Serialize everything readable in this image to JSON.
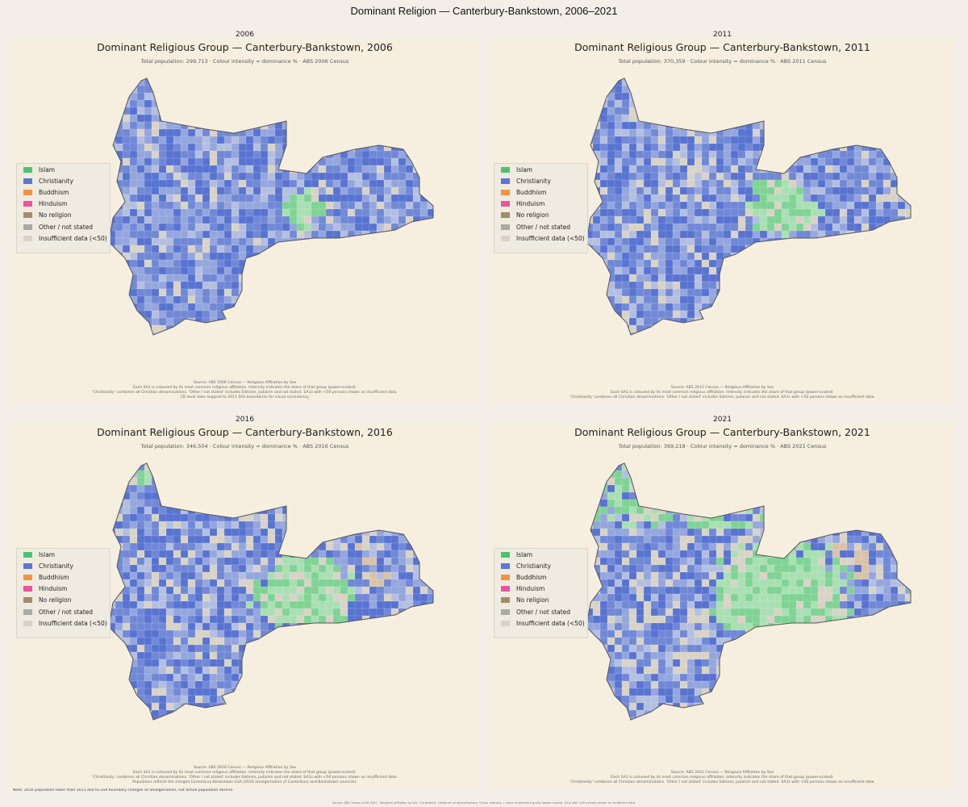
{
  "title": "Dominant Religion — Canterbury-Bankstown, 2006–2021",
  "legend": [
    {
      "label": "Islam",
      "color": "#4cc46e"
    },
    {
      "label": "Christianity",
      "color": "#5b77d0"
    },
    {
      "label": "Buddhism",
      "color": "#f59242"
    },
    {
      "label": "Hinduism",
      "color": "#e8559e"
    },
    {
      "label": "No religion",
      "color": "#a58a6c"
    },
    {
      "label": "Other / not stated",
      "color": "#a9a9a6"
    },
    {
      "label": "Insufficient data (<50)",
      "color": "#d8d3c6"
    }
  ],
  "panels": [
    {
      "label": "2006",
      "title": "Dominant Religious Group — Canterbury-Bankstown, 2006",
      "subtitle": "Total population: 299,713  ·  Colour intensity = dominance %  ·  ABS 2006 Census",
      "notes": [
        "Source: ABS 2006 Census — Religious Affiliation by Sex",
        "Each SA1 is coloured by its most common religious affiliation. Intensity indicates the share of that group (power-scaled).",
        "'Christianity' combines all Christian denominations. 'Other / not stated' includes Sikhism, Judaism and not stated. SA1s with <50 persons shown as insufficient data.",
        "CD level data mapped to 2011 SA1 boundaries for visual consistency."
      ]
    },
    {
      "label": "2011",
      "title": "Dominant Religious Group — Canterbury-Bankstown, 2011",
      "subtitle": "Total population: 370,359  ·  Colour intensity = dominance %  ·  ABS 2011 Census",
      "notes": [
        "Source: ABS 2011 Census — Religious Affiliation by Sex",
        "Each SA1 is coloured by its most common religious affiliation. Intensity indicates the share of that group (power-scaled).",
        "'Christianity' combines all Christian denominations. 'Other / not stated' includes Sikhism, Judaism and not stated. SA1s with <50 persons shown as insufficient data."
      ]
    },
    {
      "label": "2016",
      "title": "Dominant Religious Group — Canterbury-Bankstown, 2016",
      "subtitle": "Total population: 346,504  ·  Colour intensity = dominance %  ·  ABS 2016 Census",
      "notes": [
        "Source: ABS 2016 Census — Religious Affiliation by Sex",
        "Each SA1 is coloured by its most common religious affiliation. Intensity indicates the share of that group (power-scaled).",
        "'Christianity' combines all Christian denominations. 'Other / not stated' includes Sikhism, Judaism and not stated. SA1s with <50 persons shown as insufficient data.",
        "Population reflects the merged Canterbury-Bankstown LGA (2016 amalgamation of Canterbury and Bankstown councils)."
      ]
    },
    {
      "label": "2021",
      "title": "Dominant Religious Group — Canterbury-Bankstown, 2021",
      "subtitle": "Total population: 369,218  ·  Colour intensity = dominance %  ·  ABS 2021 Census",
      "notes": [
        "Source: ABS 2021 Census — Religious Affiliation by Sex",
        "Each SA1 is coloured by its most common religious affiliation. Intensity indicates the share of that group (power-scaled).",
        "'Christianity' combines all Christian denominations. 'Other / not stated' includes Sikhism, Judaism and not stated. SA1s with <50 persons shown as insufficient data."
      ]
    }
  ],
  "note": "Note: 2016 population lower than 2011 due to LGA boundary changes at amalgamation, not actual population decline.",
  "footer": "Source: ABS Census 2006–2021  ·  Religious Affiliation by Sex. 'Christianity' combines all denominations. Colour intensity = share of dominant group (power-scaled). SA1s with <50 persons shown as insufficient data."
}
